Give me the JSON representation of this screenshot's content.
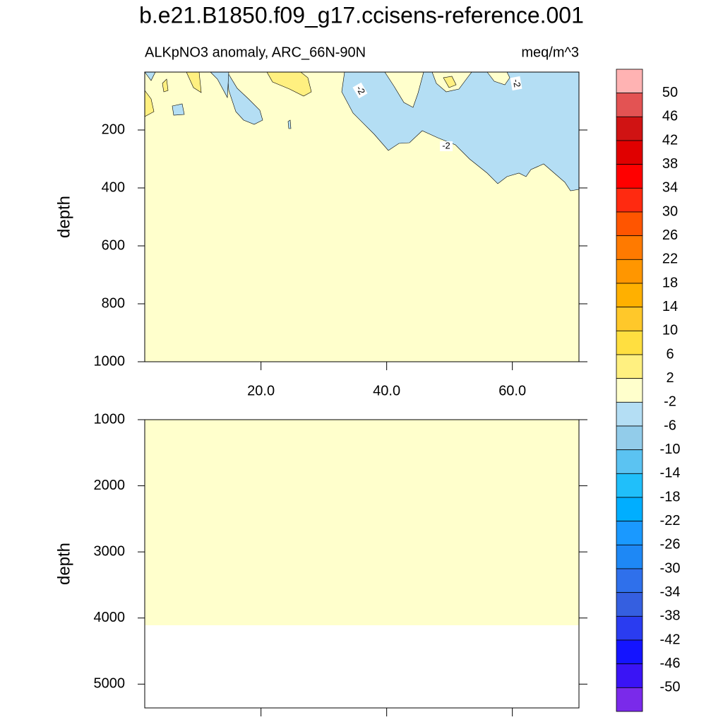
{
  "title": "b.e21.B1850.f09_g17.ccisens-reference.001",
  "chart_data": [
    {
      "type": "contour",
      "left_label": "ALKpNO3 anomaly, ARC_66N-90N",
      "right_label": "meq/m^3",
      "y_label": "depth",
      "xlim": [
        1.5,
        70.6
      ],
      "xticks": [
        {
          "value": 20,
          "label": "20.0"
        },
        {
          "value": 40,
          "label": "40.0"
        },
        {
          "value": 60,
          "label": "60.0"
        }
      ],
      "ylim": [
        0,
        1000
      ],
      "yticks": [
        200,
        400,
        600,
        800,
        1000
      ],
      "y_inverted": true,
      "contour_labels": [
        -2,
        -2,
        -2
      ]
    },
    {
      "type": "contour",
      "y_label": "depth",
      "ylim": [
        1000,
        5360
      ],
      "yticks": [
        1000,
        2000,
        3000,
        4000,
        5000
      ],
      "y_inverted": true
    }
  ],
  "colorbar": {
    "labels": [
      50,
      46,
      42,
      38,
      34,
      30,
      26,
      22,
      18,
      14,
      10,
      6,
      2,
      -2,
      -6,
      -10,
      -14,
      -18,
      -22,
      -26,
      -30,
      -34,
      -38,
      -42,
      -46,
      -50
    ],
    "colors": [
      "#ffb3b3",
      "#e35353",
      "#d01313",
      "#e00000",
      "#ff0000",
      "#ff2a10",
      "#ff5500",
      "#ff7a00",
      "#ff9600",
      "#ffb000",
      "#ffc82a",
      "#ffdf40",
      "#fff080",
      "#ffffcc",
      "#b4def4",
      "#92ccea",
      "#5bc3f2",
      "#20bffa",
      "#00aeff",
      "#1a99ff",
      "#1e88f5",
      "#2f70eb",
      "#355fe0",
      "#2a3cf0",
      "#1414ff",
      "#3a14f5",
      "#7a2aea"
    ]
  }
}
